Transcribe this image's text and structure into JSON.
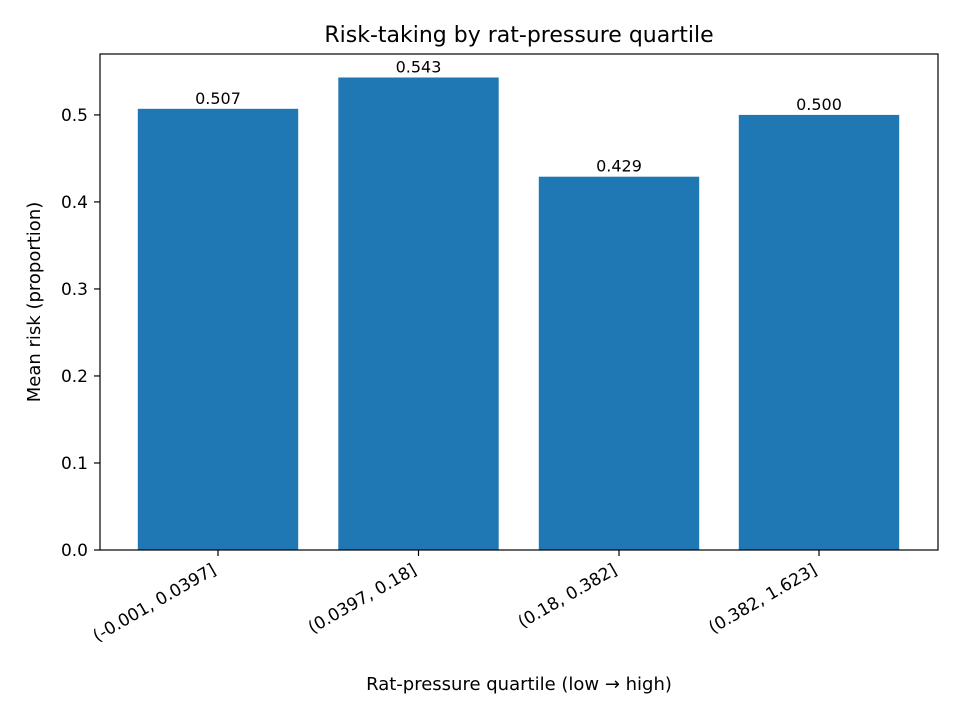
{
  "chart_data": {
    "type": "bar",
    "title": "Risk-taking by rat-pressure quartile",
    "xlabel": "Rat-pressure quartile (low → high)",
    "ylabel": "Mean risk (proportion)",
    "categories": [
      "(-0.001, 0.0397]",
      "(0.0397, 0.18]",
      "(0.18, 0.382]",
      "(0.382, 1.623]"
    ],
    "values": [
      0.507,
      0.543,
      0.429,
      0.5
    ],
    "data_labels": [
      "0.507",
      "0.543",
      "0.429",
      "0.500"
    ],
    "ylim": [
      0,
      0.57
    ],
    "yticks": [
      0.0,
      0.1,
      0.2,
      0.3,
      0.4,
      0.5
    ],
    "ytick_labels": [
      "0.0",
      "0.1",
      "0.2",
      "0.3",
      "0.4",
      "0.5"
    ],
    "bar_color": "#1f77b4",
    "grid": false,
    "legend": "none"
  }
}
